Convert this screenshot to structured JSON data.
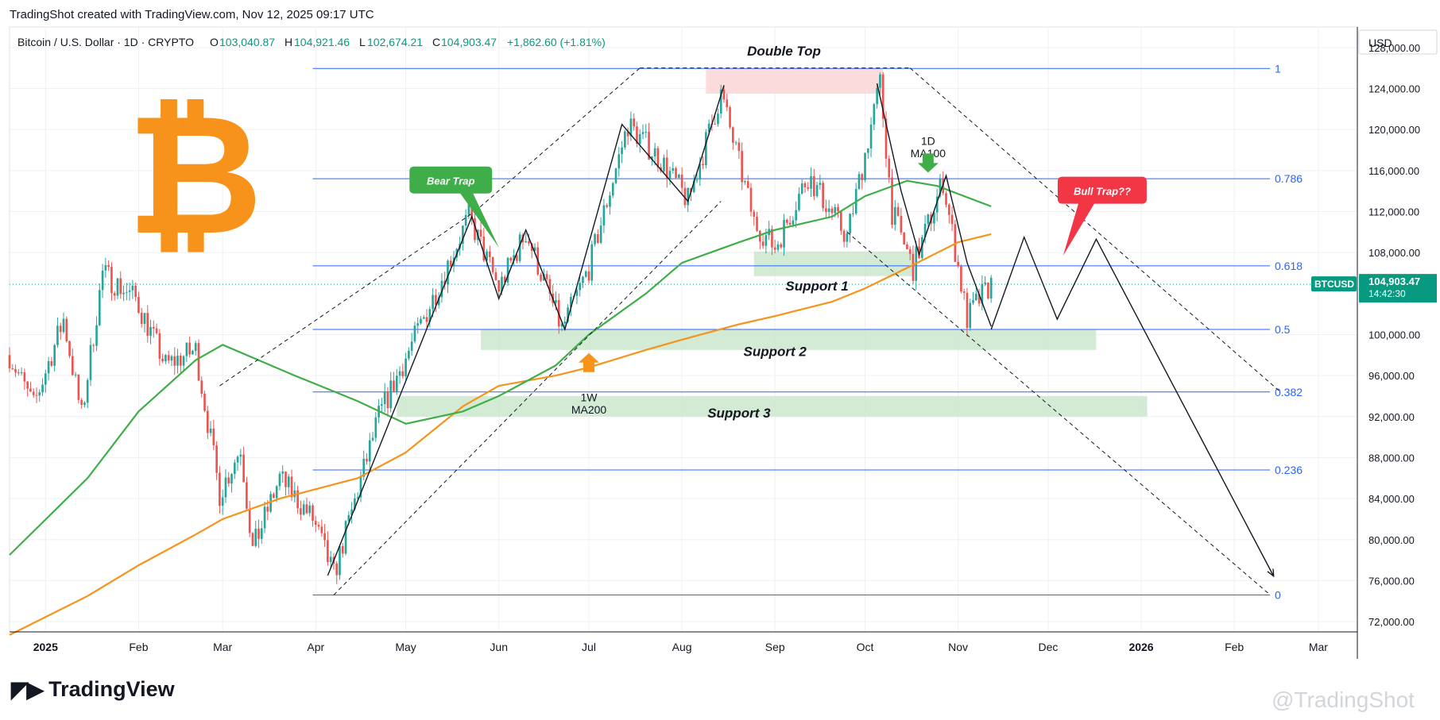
{
  "header": {
    "created_line": "TradingShot created with TradingView.com, Nov 12, 2025 09:17 UTC",
    "symbol": "Bitcoin / U.S. Dollar · 1D · CRYPTO",
    "open_label": "O",
    "open": "103,040.87",
    "high_label": "H",
    "high": "104,921.46",
    "low_label": "L",
    "low": "102,674.21",
    "close_label": "C",
    "close": "104,903.47",
    "change": "+1,862.60 (+1.81%)"
  },
  "currency": "USD",
  "price_tag": {
    "symbol": "BTCUSD",
    "price": "104,903.47",
    "countdown": "14:42:30"
  },
  "footer": {
    "brand": "TradingView",
    "watermark": "@TradingShot"
  },
  "colors": {
    "up": "#26a69a",
    "down": "#ef5350",
    "ma100": "#3fae49",
    "ma200": "#f7931a",
    "fib": "#2962ff",
    "support": "#c8e6c9",
    "bitcoin": "#f7931a"
  },
  "icons": {
    "logo": "bitcoin-icon",
    "arrow_green": "arrow-down-icon",
    "arrow_orange": "arrow-up-icon"
  },
  "chart_data": {
    "type": "candlestick",
    "title": "Bitcoin / U.S. Dollar · 1D · CRYPTO",
    "ylim": [
      71000,
      130000
    ],
    "y_ticks": [
      "128,000.00",
      "124,000.00",
      "120,000.00",
      "116,000.00",
      "112,000.00",
      "108,000.00",
      "100,000.00",
      "96,000.00",
      "92,000.00",
      "88,000.00",
      "84,000.00",
      "80,000.00",
      "76,000.00",
      "72,000.00"
    ],
    "y_tick_values": [
      128000,
      124000,
      120000,
      116000,
      112000,
      108000,
      100000,
      96000,
      92000,
      88000,
      84000,
      80000,
      76000,
      72000
    ],
    "x_ticks": [
      "2025",
      "Feb",
      "Mar",
      "Apr",
      "May",
      "Jun",
      "Jul",
      "Aug",
      "Sep",
      "Oct",
      "Nov",
      "Dec",
      "2026",
      "Feb",
      "Mar"
    ],
    "x_tick_dates": [
      "2025-01-01",
      "2025-02-01",
      "2025-03-01",
      "2025-04-01",
      "2025-05-01",
      "2025-06-01",
      "2025-07-01",
      "2025-08-01",
      "2025-09-01",
      "2025-10-01",
      "2025-11-01",
      "2025-12-01",
      "2026-01-01",
      "2026-02-01",
      "2026-03-01"
    ],
    "x_range": [
      "2024-12-20",
      "2026-03-14"
    ],
    "fib_levels": [
      {
        "label": "1",
        "price": 125950
      },
      {
        "label": "0.786",
        "price": 115200
      },
      {
        "label": "0.618",
        "price": 106700
      },
      {
        "label": "0.5",
        "price": 100500
      },
      {
        "label": "0.382",
        "price": 94400
      },
      {
        "label": "0.236",
        "price": 86800
      },
      {
        "label": "0",
        "price": 74600
      }
    ],
    "fib_start_date": "2025-03-31",
    "support_zones": [
      {
        "label": "Support 1",
        "from": "2025-08-25",
        "to": "2025-10-17",
        "low": 105700,
        "high": 108100
      },
      {
        "label": "Support 2",
        "from": "2025-05-26",
        "to": "2025-12-17",
        "low": 98500,
        "high": 100500
      },
      {
        "label": "Support 3",
        "from": "2025-04-28",
        "to": "2026-01-03",
        "low": 92000,
        "high": 94000
      }
    ],
    "resistance_zone": {
      "label": "Double Top",
      "from": "2025-08-09",
      "to": "2025-10-07",
      "low": 123500,
      "high": 126000
    },
    "annotations": [
      {
        "text": "Double Top",
        "date": "2025-09-04",
        "price": 127200
      },
      {
        "text": "Support 1",
        "date": "2025-09-15",
        "price": 104300
      },
      {
        "text": "Support 2",
        "date": "2025-09-01",
        "price": 97900
      },
      {
        "text": "Support 3",
        "date": "2025-08-20",
        "price": 91900
      },
      {
        "text": "1D",
        "date": "2025-10-22",
        "price": 118500
      },
      {
        "text": "MA100",
        "date": "2025-10-22",
        "price": 117300
      },
      {
        "text": "1W",
        "date": "2025-07-01",
        "price": 93500
      },
      {
        "text": "MA200",
        "date": "2025-07-01",
        "price": 92300
      },
      {
        "text": "Bear Trap",
        "date": "2025-05-16",
        "price": 115000
      },
      {
        "text": "Bull Trap??",
        "date": "2025-12-19",
        "price": 114000
      }
    ],
    "channel_lines": [
      {
        "from": [
          "2025-02-28",
          95000
        ],
        "to": [
          "2025-05-24",
          112000
        ]
      },
      {
        "from": [
          "2025-05-24",
          112000
        ],
        "to": [
          "2025-07-18",
          126000
        ]
      },
      {
        "from": [
          "2025-07-18",
          126000
        ],
        "to": [
          "2025-10-16",
          126000
        ]
      },
      {
        "from": [
          "2025-10-16",
          126000
        ],
        "to": [
          "2026-02-16",
          94500
        ]
      },
      {
        "from": [
          "2025-04-07",
          74600
        ],
        "to": [
          "2025-08-14",
          113000
        ]
      },
      {
        "from": [
          "2025-09-25",
          110000
        ],
        "to": [
          "2026-02-13",
          74600
        ]
      }
    ],
    "zigzag": [
      [
        "2025-04-05",
        76500
      ],
      [
        "2025-05-23",
        111500
      ],
      [
        "2025-06-01",
        103500
      ],
      [
        "2025-06-10",
        110200
      ],
      [
        "2025-06-23",
        100500
      ],
      [
        "2025-07-12",
        120500
      ],
      [
        "2025-08-03",
        113000
      ],
      [
        "2025-08-15",
        124300
      ]
    ],
    "zigzag2": [
      [
        "2025-10-05",
        124500
      ],
      [
        "2025-10-13",
        114000
      ],
      [
        "2025-10-19",
        107800
      ],
      [
        "2025-10-28",
        115500
      ],
      [
        "2025-11-04",
        107000
      ],
      [
        "2025-11-12",
        100800
      ]
    ],
    "projection": [
      [
        "2025-11-12",
        100500
      ],
      [
        "2025-11-23",
        109500
      ],
      [
        "2025-12-04",
        101500
      ],
      [
        "2025-12-17",
        109300
      ],
      [
        "2026-02-14",
        76500
      ]
    ],
    "ma100_points": [
      [
        "2024-12-20",
        78500
      ],
      [
        "2025-01-15",
        86000
      ],
      [
        "2025-02-01",
        92500
      ],
      [
        "2025-02-20",
        97500
      ],
      [
        "2025-03-01",
        99000
      ],
      [
        "2025-03-25",
        96000
      ],
      [
        "2025-04-15",
        93500
      ],
      [
        "2025-05-01",
        91300
      ],
      [
        "2025-05-20",
        92500
      ],
      [
        "2025-06-01",
        94000
      ],
      [
        "2025-06-20",
        97000
      ],
      [
        "2025-07-01",
        100000
      ],
      [
        "2025-07-20",
        104000
      ],
      [
        "2025-08-01",
        107000
      ],
      [
        "2025-08-20",
        109000
      ],
      [
        "2025-09-01",
        110200
      ],
      [
        "2025-09-20",
        111500
      ],
      [
        "2025-10-01",
        113500
      ],
      [
        "2025-10-15",
        115000
      ],
      [
        "2025-10-25",
        114500
      ],
      [
        "2025-11-12",
        112500
      ]
    ],
    "ma200_points": [
      [
        "2024-12-20",
        70700
      ],
      [
        "2025-01-15",
        74500
      ],
      [
        "2025-02-01",
        77500
      ],
      [
        "2025-02-20",
        80500
      ],
      [
        "2025-03-01",
        82000
      ],
      [
        "2025-03-20",
        84000
      ],
      [
        "2025-04-15",
        86000
      ],
      [
        "2025-05-01",
        88500
      ],
      [
        "2025-05-20",
        93000
      ],
      [
        "2025-06-01",
        95000
      ],
      [
        "2025-06-20",
        96000
      ],
      [
        "2025-07-01",
        96800
      ],
      [
        "2025-07-20",
        98500
      ],
      [
        "2025-08-01",
        99500
      ],
      [
        "2025-08-20",
        101000
      ],
      [
        "2025-09-01",
        101800
      ],
      [
        "2025-09-20",
        103200
      ],
      [
        "2025-10-01",
        104500
      ],
      [
        "2025-10-15",
        106500
      ],
      [
        "2025-11-01",
        109000
      ],
      [
        "2025-11-12",
        109800
      ]
    ],
    "price_path": [
      [
        "2024-12-20",
        98000
      ],
      [
        "2024-12-28",
        93000
      ],
      [
        "2025-01-07",
        101500
      ],
      [
        "2025-01-13",
        92000
      ],
      [
        "2025-01-20",
        106000
      ],
      [
        "2025-01-31",
        103500
      ],
      [
        "2025-02-10",
        97000
      ],
      [
        "2025-02-20",
        98500
      ],
      [
        "2025-02-28",
        84500
      ],
      [
        "2025-03-07",
        89000
      ],
      [
        "2025-03-11",
        79000
      ],
      [
        "2025-03-20",
        86000
      ],
      [
        "2025-03-31",
        82000
      ],
      [
        "2025-04-07",
        76500
      ],
      [
        "2025-04-22",
        92000
      ],
      [
        "2025-05-10",
        103500
      ],
      [
        "2025-05-22",
        111500
      ],
      [
        "2025-06-01",
        104500
      ],
      [
        "2025-06-10",
        110000
      ],
      [
        "2025-06-22",
        100500
      ],
      [
        "2025-07-01",
        106500
      ],
      [
        "2025-07-14",
        120500
      ],
      [
        "2025-07-25",
        117000
      ],
      [
        "2025-08-03",
        113000
      ],
      [
        "2025-08-14",
        123500
      ],
      [
        "2025-08-25",
        111000
      ],
      [
        "2025-09-01",
        108500
      ],
      [
        "2025-09-12",
        115500
      ],
      [
        "2025-09-25",
        109500
      ],
      [
        "2025-10-06",
        124500
      ],
      [
        "2025-10-10",
        112000
      ],
      [
        "2025-10-17",
        106500
      ],
      [
        "2025-10-27",
        115000
      ],
      [
        "2025-11-04",
        101500
      ],
      [
        "2025-11-07",
        103000
      ],
      [
        "2025-11-12",
        104903
      ]
    ],
    "last_price": 104903.47
  }
}
